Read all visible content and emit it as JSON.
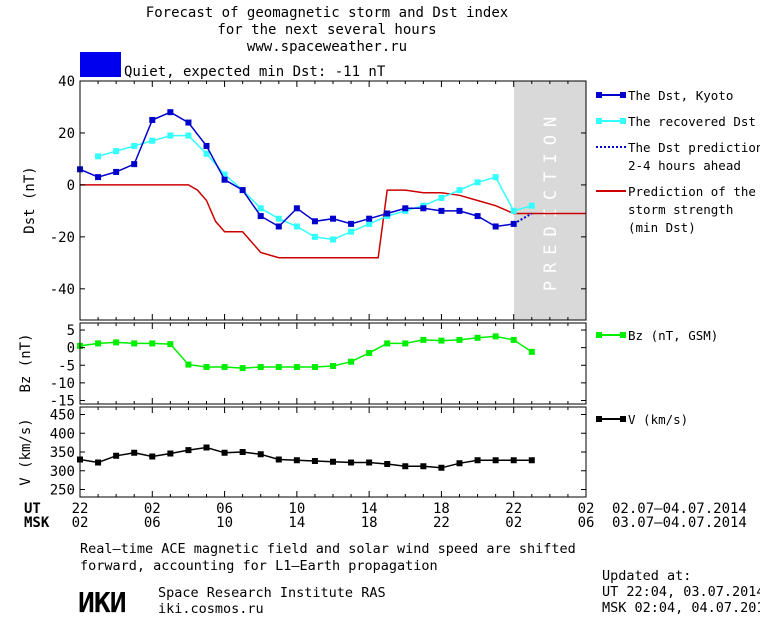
{
  "header": {
    "title_1": "Forecast of geomagnetic storm and Dst index",
    "title_2": "for the next several hours",
    "site": "www.spaceweather.ru",
    "status": "Quiet, expected min Dst: -11 nT",
    "status_color": "#0000ee"
  },
  "colors": {
    "dst_kyoto": "#0000cc",
    "dst_recovered": "#33ffff",
    "dst_prediction": "#0000cc",
    "storm_strength": "#cc0000",
    "bz": "#00ee00",
    "v": "#000000",
    "prediction_band": "#d9d9d9"
  },
  "prediction_label": "PREDICTION",
  "chart_data": [
    {
      "type": "line",
      "id": "dst",
      "ylabel": "Dst (nT)",
      "ylim": [
        -52,
        40
      ],
      "yticks": [
        "40",
        "20",
        "0",
        "-20",
        "-40"
      ],
      "ytick_values": [
        40,
        20,
        0,
        -20,
        -40
      ],
      "xlim": [
        0,
        28
      ],
      "prediction_start": 24,
      "legend": [
        {
          "label": "The Dst, Kyoto",
          "style": "line-marker"
        },
        {
          "label": "The recovered Dst",
          "style": "line-marker"
        },
        {
          "label_lines": [
            "The Dst prediction",
            "2-4 hours ahead"
          ],
          "style": "dotted"
        },
        {
          "label_lines": [
            "Prediction of the",
            "storm strength",
            "(min Dst)"
          ],
          "style": "line"
        }
      ],
      "series": [
        {
          "name": "The Dst, Kyoto",
          "x": [
            0,
            1,
            2,
            3,
            4,
            5,
            6,
            7,
            8,
            9,
            10,
            11,
            12,
            13,
            14,
            15,
            16,
            17,
            18,
            19,
            20,
            21,
            22,
            23,
            24
          ],
          "y": [
            6,
            3,
            5,
            8,
            25,
            28,
            24,
            15,
            2,
            -2,
            -12,
            -16,
            -9,
            -14,
            -13,
            -15,
            -13,
            -11,
            -9,
            -9,
            -10,
            -10,
            -12,
            -16,
            -15
          ]
        },
        {
          "name": "The recovered Dst",
          "x": [
            1,
            2,
            3,
            4,
            5,
            6,
            7,
            8,
            9,
            10,
            11,
            12,
            13,
            14,
            15,
            16,
            17,
            18,
            19,
            20,
            21,
            22,
            23,
            24,
            25
          ],
          "y": [
            11,
            13,
            15,
            17,
            19,
            19,
            12,
            4,
            -2,
            -9,
            -13,
            -16,
            -20,
            -21,
            -18,
            -15,
            -12,
            -10,
            -8,
            -5,
            -2,
            1,
            3,
            -10,
            -8
          ]
        },
        {
          "name": "The Dst prediction",
          "x": [
            24,
            25
          ],
          "y": [
            -15,
            -11
          ]
        },
        {
          "name": "Prediction of the storm strength",
          "x": [
            0,
            6,
            6.5,
            7,
            7.5,
            8,
            9,
            9.5,
            10,
            11,
            16,
            16.5,
            17,
            18,
            19,
            20,
            21,
            22,
            23,
            24,
            28
          ],
          "y": [
            0,
            0,
            -2,
            -6,
            -14,
            -18,
            -18,
            -22,
            -26,
            -28,
            -28,
            -28,
            -2,
            -2,
            -3,
            -3,
            -4,
            -6,
            -8,
            -11,
            -11
          ]
        }
      ]
    },
    {
      "type": "line",
      "id": "bz",
      "ylabel": "Bz (nT)",
      "ylim": [
        -16,
        7
      ],
      "yticks": [
        "5",
        "0",
        "-5",
        "-10",
        "-15"
      ],
      "ytick_values": [
        5,
        0,
        -5,
        -10,
        -15
      ],
      "xlim": [
        0,
        28
      ],
      "legend": [
        {
          "label": "Bz (nT, GSM)",
          "style": "line-marker"
        }
      ],
      "series": [
        {
          "name": "Bz (nT, GSM)",
          "x": [
            0,
            1,
            2,
            3,
            4,
            5,
            6,
            7,
            8,
            9,
            10,
            11,
            12,
            13,
            14,
            15,
            16,
            17,
            18,
            19,
            20,
            21,
            22,
            23,
            24,
            25
          ],
          "y": [
            0.5,
            1.2,
            1.5,
            1.2,
            1.2,
            1.0,
            -4.8,
            -5.5,
            -5.5,
            -5.8,
            -5.5,
            -5.5,
            -5.5,
            -5.5,
            -5.2,
            -4.0,
            -1.5,
            1.2,
            1.2,
            2.2,
            2.0,
            2.2,
            2.8,
            3.2,
            2.2,
            -1.2
          ]
        }
      ]
    },
    {
      "type": "line",
      "id": "v",
      "ylabel": "V (km/s)",
      "ylim": [
        230,
        470
      ],
      "yticks": [
        "450",
        "400",
        "350",
        "300",
        "250"
      ],
      "ytick_values": [
        450,
        400,
        350,
        300,
        250
      ],
      "xlim": [
        0,
        28
      ],
      "legend": [
        {
          "label": "V (km/s)",
          "style": "line-marker"
        }
      ],
      "series": [
        {
          "name": "V (km/s)",
          "x": [
            0,
            1,
            2,
            3,
            4,
            5,
            6,
            7,
            8,
            9,
            10,
            11,
            12,
            13,
            14,
            15,
            16,
            17,
            18,
            19,
            20,
            21,
            22,
            23,
            24,
            25
          ],
          "y": [
            330,
            322,
            340,
            348,
            338,
            346,
            355,
            362,
            348,
            350,
            344,
            330,
            328,
            326,
            324,
            322,
            322,
            318,
            312,
            312,
            308,
            320,
            328,
            328,
            328,
            328
          ]
        }
      ]
    }
  ],
  "x_axis": {
    "ut_label": "UT",
    "msk_label": "MSK",
    "ut_ticks": [
      "22",
      "02",
      "06",
      "10",
      "14",
      "18",
      "22",
      "02"
    ],
    "msk_ticks": [
      "02",
      "06",
      "10",
      "14",
      "18",
      "22",
      "02",
      "06"
    ],
    "tick_values": [
      0,
      4,
      8,
      12,
      16,
      20,
      24,
      28
    ],
    "ut_range": "02.07—04.07.2014",
    "msk_range": "03.07—04.07.2014"
  },
  "footer": {
    "note_1": "Real–time ACE magnetic field and solar wind speed are shifted",
    "note_2": "forward, accounting for L1–Earth propagation",
    "logo": "ИКИ",
    "institute": "Space Research Institute RAS",
    "site": "iki.cosmos.ru",
    "updated_label": "Updated at:",
    "ut_updated": "UT   22:04, 03.07.2014",
    "msk_updated": "MSK 02:04, 04.07.2014"
  }
}
